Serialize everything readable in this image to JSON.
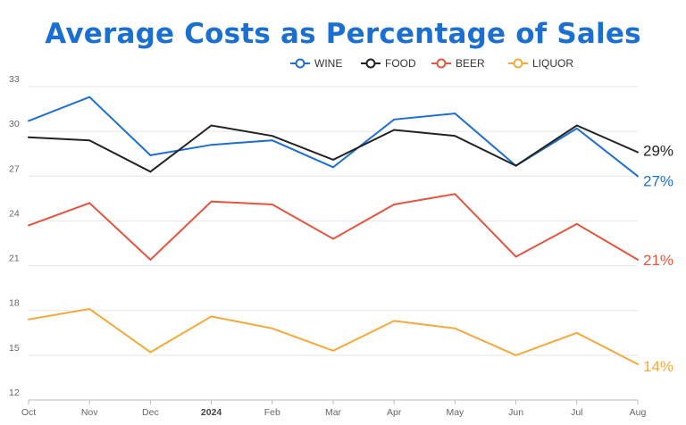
{
  "chart_data": {
    "type": "line",
    "title": "Average Costs as Percentage of Sales",
    "xlabel": "",
    "ylabel": "",
    "categories": [
      "Oct",
      "Nov",
      "Dec",
      "2024",
      "Feb",
      "Mar",
      "Apr",
      "May",
      "Jun",
      "Jul",
      "Aug"
    ],
    "bold_categories": [
      "2024"
    ],
    "ylim": [
      12,
      33
    ],
    "yticks": [
      12,
      15,
      18,
      21,
      24,
      27,
      30,
      33
    ],
    "grid": true,
    "legend_position": "top-center",
    "series": [
      {
        "name": "WINE",
        "color": "#1f6fd0",
        "values": [
          30.7,
          32.3,
          28.4,
          29.1,
          29.4,
          27.6,
          30.8,
          31.2,
          27.7,
          30.2,
          27.0
        ],
        "end_label": "27%"
      },
      {
        "name": "FOOD",
        "color": "#222222",
        "values": [
          29.6,
          29.4,
          27.3,
          30.4,
          29.7,
          28.1,
          30.1,
          29.7,
          27.7,
          30.4,
          28.6
        ],
        "end_label": "29%"
      },
      {
        "name": "BEER",
        "color": "#e4553f",
        "values": [
          23.7,
          25.2,
          21.4,
          25.3,
          25.1,
          22.8,
          25.1,
          25.8,
          21.6,
          23.8,
          21.4
        ],
        "end_label": "21%"
      },
      {
        "name": "LIQUOR",
        "color": "#f4a93a",
        "values": [
          17.4,
          18.1,
          15.2,
          17.6,
          16.8,
          15.3,
          17.3,
          16.8,
          15.0,
          16.5,
          14.4
        ],
        "end_label": "14%"
      }
    ]
  }
}
